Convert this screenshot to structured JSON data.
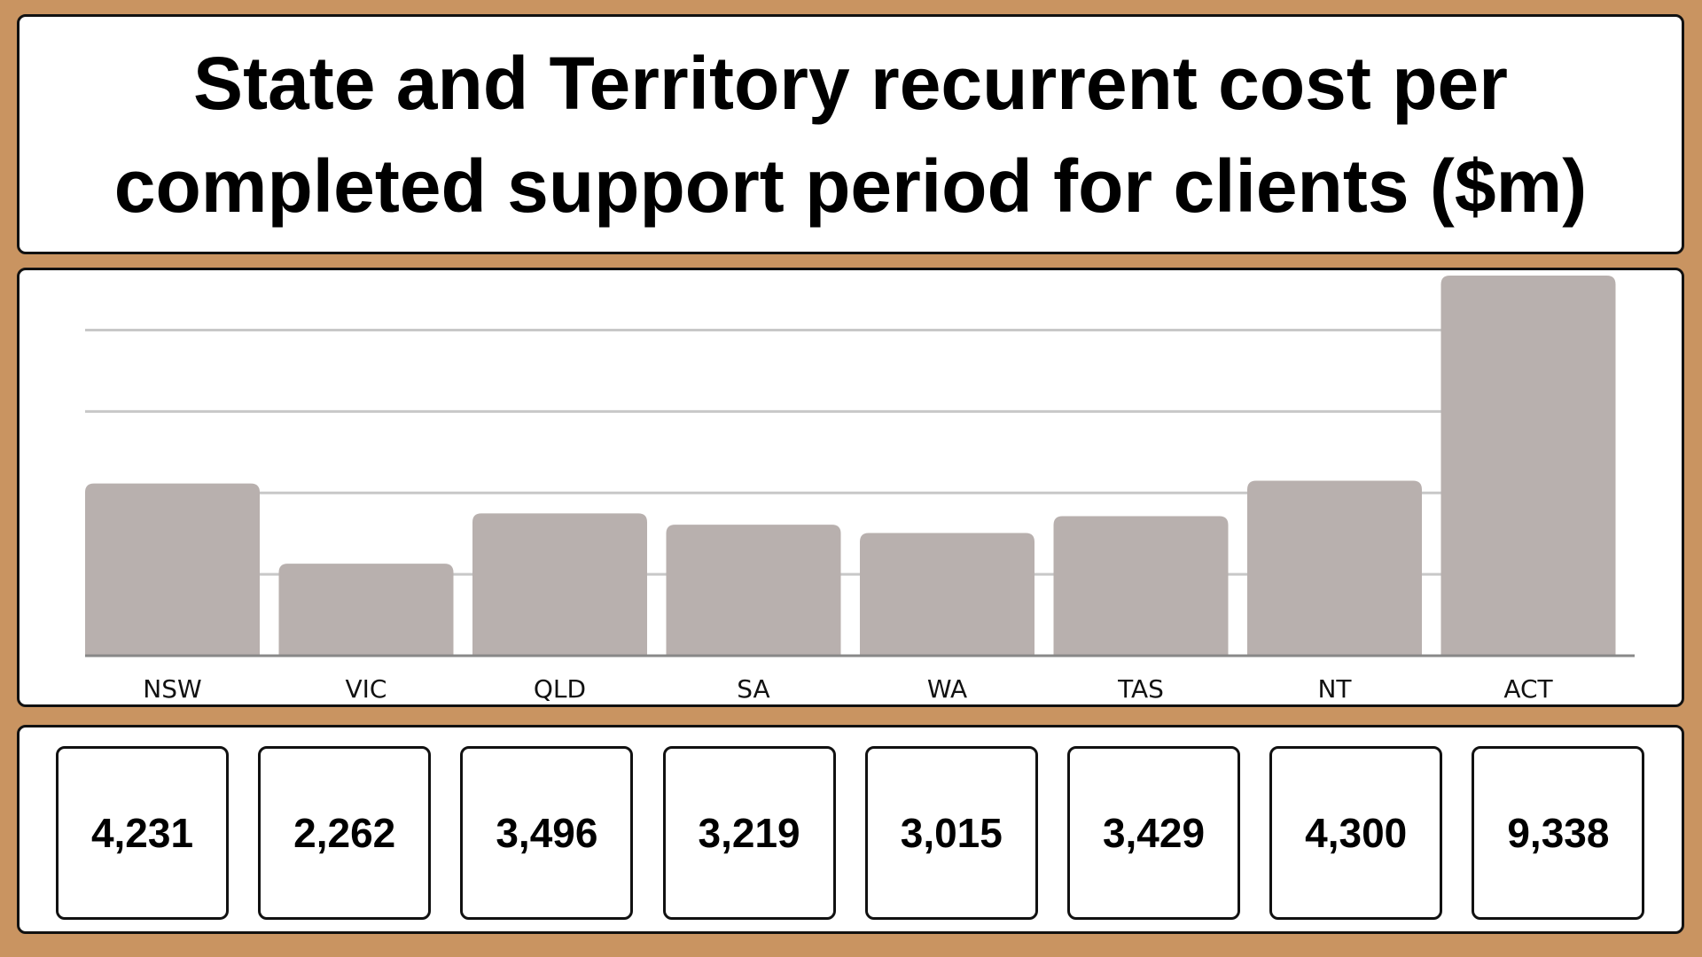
{
  "title": "State and Territory recurrent cost per completed support period for clients ($m)",
  "colors": {
    "background": "#c99461",
    "bar": "#b8b0ae",
    "gridline": "#c8c8c8",
    "baseline": "#888888",
    "panel": "#ffffff",
    "border": "#111111"
  },
  "chart_data": {
    "type": "bar",
    "title": "State and Territory recurrent cost per completed support period for clients ($m)",
    "categories": [
      "NSW",
      "VIC",
      "QLD",
      "SA",
      "WA",
      "TAS",
      "NT",
      "ACT"
    ],
    "values": [
      4231,
      2262,
      3496,
      3219,
      3015,
      3429,
      4300,
      9338
    ],
    "xlabel": "",
    "ylabel": "",
    "ylim": [
      0,
      9338
    ],
    "grid": true,
    "gridlines": [
      2000,
      4000,
      6000,
      8000
    ]
  },
  "value_boxes": [
    "4,231",
    "2,262",
    "3,496",
    "3,219",
    "3,015",
    "3,429",
    "4,300",
    "9,338"
  ]
}
